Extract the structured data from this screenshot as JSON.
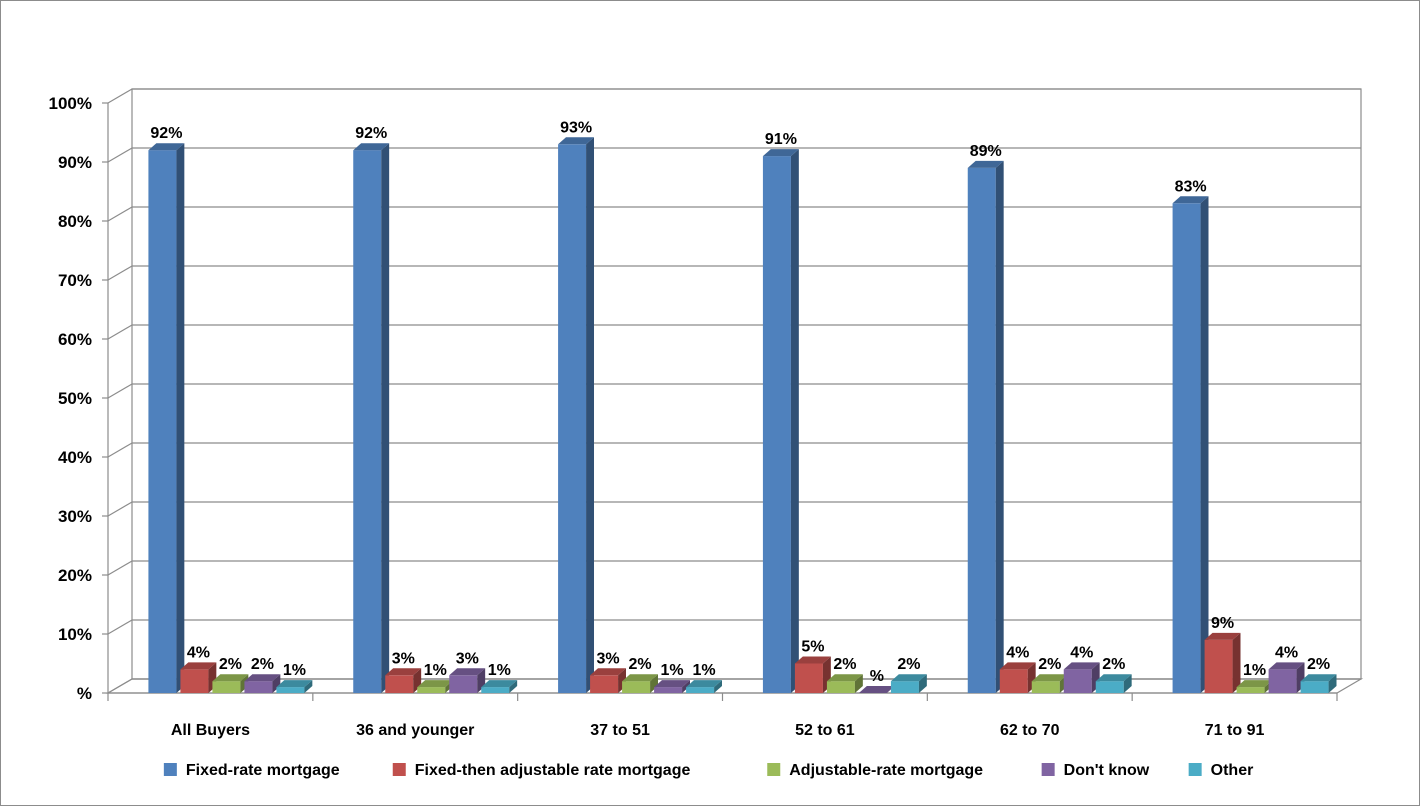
{
  "chart_data": {
    "type": "bar",
    "title": "",
    "xlabel": "",
    "ylabel": "",
    "ylim": [
      0,
      100
    ],
    "y_tick_labels": [
      "%",
      "10%",
      "20%",
      "30%",
      "40%",
      "50%",
      "60%",
      "70%",
      "80%",
      "90%",
      "100%"
    ],
    "grid": true,
    "legend_position": "bottom",
    "categories": [
      "All Buyers",
      "36 and younger",
      "37 to 51",
      "52 to 61",
      "62 to 70",
      "71 to 91"
    ],
    "series": [
      {
        "name": "Fixed-rate mortgage",
        "color": "#4F81BD",
        "values": [
          92,
          92,
          93,
          91,
          89,
          83
        ],
        "labels": [
          "92%",
          "92%",
          "93%",
          "91%",
          "89%",
          "83%"
        ]
      },
      {
        "name": "Fixed-then adjustable rate mortgage",
        "color": "#C0504D",
        "values": [
          4,
          3,
          3,
          5,
          4,
          9
        ],
        "labels": [
          "4%",
          "3%",
          "3%",
          "5%",
          "4%",
          "9%"
        ]
      },
      {
        "name": "Adjustable-rate mortgage",
        "color": "#9BBB59",
        "values": [
          2,
          1,
          2,
          2,
          2,
          1
        ],
        "labels": [
          "2%",
          "1%",
          "2%",
          "2%",
          "2%",
          "1%"
        ]
      },
      {
        "name": "Don't know",
        "color": "#8064A2",
        "values": [
          2,
          3,
          1,
          0,
          4,
          4
        ],
        "labels": [
          "2%",
          "3%",
          "1%",
          "%",
          "4%",
          "4%"
        ]
      },
      {
        "name": "Other",
        "color": "#4BACC6",
        "values": [
          1,
          1,
          1,
          2,
          2,
          2
        ],
        "labels": [
          "1%",
          "1%",
          "1%",
          "2%",
          "2%",
          "2%"
        ]
      }
    ]
  }
}
